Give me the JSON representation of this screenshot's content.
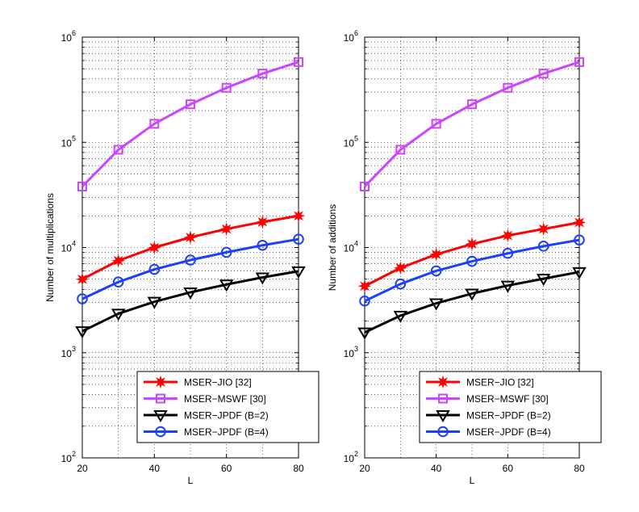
{
  "chart_data": [
    {
      "type": "line",
      "yscale": "log",
      "title": "",
      "xlabel": "L",
      "ylabel": "Number of multiplications",
      "xlim": [
        20,
        80
      ],
      "ylim": [
        100,
        1000000
      ],
      "grid": true,
      "legend_position": "bottom-right",
      "x": [
        20,
        30,
        40,
        50,
        60,
        70,
        80
      ],
      "xticks": [
        "20",
        "40",
        "60",
        "80"
      ],
      "yticks": [
        {
          "base": "10",
          "exp": "2"
        },
        {
          "base": "10",
          "exp": "3"
        },
        {
          "base": "10",
          "exp": "4"
        },
        {
          "base": "10",
          "exp": "5"
        },
        {
          "base": "10",
          "exp": "6"
        }
      ],
      "series": [
        {
          "name": "MSER−JIO [32]",
          "color": "#ff0000",
          "marker": "star",
          "values": [
            5000,
            7500,
            10000,
            12500,
            15000,
            17500,
            20000
          ]
        },
        {
          "name": "MSER−MSWF [30]",
          "color": "#cc44ff",
          "marker": "square",
          "values": [
            38000,
            85000,
            150000,
            230000,
            330000,
            450000,
            580000
          ]
        },
        {
          "name": "MSER−JPDF (B=2)",
          "color": "#000000",
          "marker": "triangle-down",
          "values": [
            1600,
            2350,
            3050,
            3750,
            4450,
            5200,
            5950
          ]
        },
        {
          "name": "MSER−JPDF (B=4)",
          "color": "#1c3fff",
          "marker": "circle",
          "values": [
            3250,
            4700,
            6200,
            7600,
            9000,
            10500,
            12000
          ]
        }
      ]
    },
    {
      "type": "line",
      "yscale": "log",
      "title": "",
      "xlabel": "L",
      "ylabel": "Number of additions",
      "xlim": [
        20,
        80
      ],
      "ylim": [
        100,
        1000000
      ],
      "grid": true,
      "legend_position": "bottom-right",
      "x": [
        20,
        30,
        40,
        50,
        60,
        70,
        80
      ],
      "xticks": [
        "20",
        "40",
        "60",
        "80"
      ],
      "yticks": [
        {
          "base": "10",
          "exp": "2"
        },
        {
          "base": "10",
          "exp": "3"
        },
        {
          "base": "10",
          "exp": "4"
        },
        {
          "base": "10",
          "exp": "5"
        },
        {
          "base": "10",
          "exp": "6"
        }
      ],
      "series": [
        {
          "name": "MSER−JIO [32]",
          "color": "#ff0000",
          "marker": "star",
          "values": [
            4300,
            6400,
            8600,
            10800,
            13000,
            15000,
            17300
          ]
        },
        {
          "name": "MSER−MSWF [30]",
          "color": "#cc44ff",
          "marker": "square",
          "values": [
            38000,
            85000,
            150000,
            230000,
            330000,
            450000,
            580000
          ]
        },
        {
          "name": "MSER−JPDF (B=2)",
          "color": "#000000",
          "marker": "triangle-down",
          "values": [
            1560,
            2250,
            2950,
            3650,
            4350,
            5050,
            5850
          ]
        },
        {
          "name": "MSER−JPDF (B=4)",
          "color": "#1c3fff",
          "marker": "circle",
          "values": [
            3100,
            4500,
            6000,
            7400,
            8800,
            10300,
            11800
          ]
        }
      ]
    }
  ]
}
